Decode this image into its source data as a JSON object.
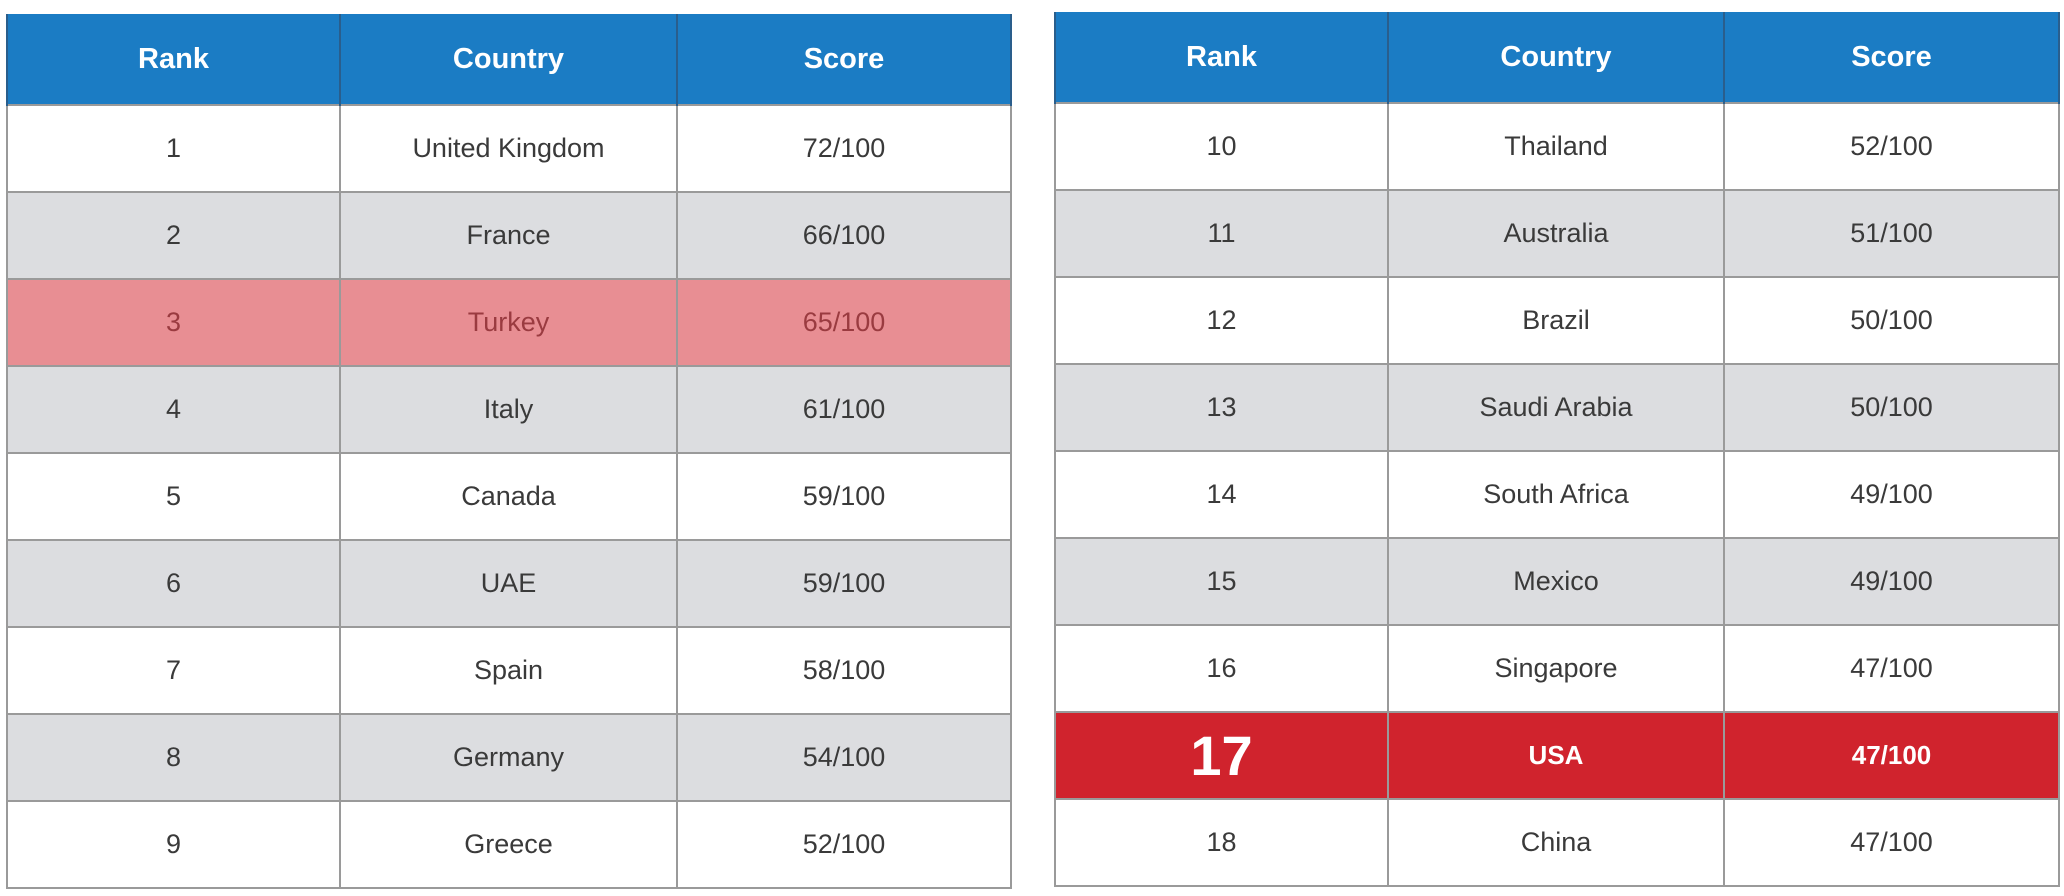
{
  "chart_data": {
    "type": "table",
    "columns": [
      "Rank",
      "Country",
      "Score"
    ],
    "tables": [
      {
        "rows": [
          {
            "rank": "1",
            "country": "United Kingdom",
            "score": "72/100",
            "style": "white"
          },
          {
            "rank": "2",
            "country": "France",
            "score": "66/100",
            "style": "gray"
          },
          {
            "rank": "3",
            "country": "Turkey",
            "score": "65/100",
            "style": "pink"
          },
          {
            "rank": "4",
            "country": "Italy",
            "score": "61/100",
            "style": "gray"
          },
          {
            "rank": "5",
            "country": "Canada",
            "score": "59/100",
            "style": "white"
          },
          {
            "rank": "6",
            "country": "UAE",
            "score": "59/100",
            "style": "gray"
          },
          {
            "rank": "7",
            "country": "Spain",
            "score": "58/100",
            "style": "white"
          },
          {
            "rank": "8",
            "country": "Germany",
            "score": "54/100",
            "style": "gray"
          },
          {
            "rank": "9",
            "country": "Greece",
            "score": "52/100",
            "style": "white"
          }
        ]
      },
      {
        "rows": [
          {
            "rank": "10",
            "country": "Thailand",
            "score": "52/100",
            "style": "white"
          },
          {
            "rank": "11",
            "country": "Australia",
            "score": "51/100",
            "style": "gray"
          },
          {
            "rank": "12",
            "country": "Brazil",
            "score": "50/100",
            "style": "white"
          },
          {
            "rank": "13",
            "country": "Saudi Arabia",
            "score": "50/100",
            "style": "gray"
          },
          {
            "rank": "14",
            "country": "South Africa",
            "score": "49/100",
            "style": "white"
          },
          {
            "rank": "15",
            "country": "Mexico",
            "score": "49/100",
            "style": "gray"
          },
          {
            "rank": "16",
            "country": "Singapore",
            "score": "47/100",
            "style": "white"
          },
          {
            "rank": "17",
            "country": "USA",
            "score": "47/100",
            "style": "red"
          },
          {
            "rank": "18",
            "country": "China",
            "score": "47/100",
            "style": "white"
          }
        ]
      }
    ]
  },
  "colors": {
    "header": "#1b7cc4",
    "row_gray": "#dcdde0",
    "highlight_pink": "#e88e93",
    "highlight_red": "#d0232d"
  }
}
